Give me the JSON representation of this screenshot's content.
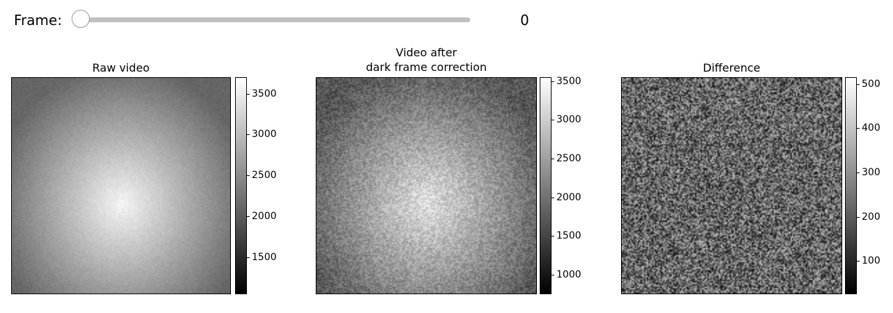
{
  "slider": {
    "label": "Frame:",
    "value": 0,
    "min": 0,
    "max": null
  },
  "panels": [
    {
      "title": "Raw video",
      "image": {
        "pattern": "smooth-vignette",
        "dark": 25,
        "bright": 245
      },
      "colorbar": {
        "min": 1050,
        "max": 3700,
        "ticks": [
          {
            "value": 1500,
            "label": "1500"
          },
          {
            "value": 2000,
            "label": "2000"
          },
          {
            "value": 2500,
            "label": "2500"
          },
          {
            "value": 3000,
            "label": "3000"
          },
          {
            "value": 3500,
            "label": "3500"
          }
        ]
      }
    },
    {
      "title": "Video after\ndark frame correction",
      "image": {
        "pattern": "noisy-vignette",
        "dark": 25,
        "bright": 235
      },
      "colorbar": {
        "min": 750,
        "max": 3550,
        "ticks": [
          {
            "value": 1000,
            "label": "1000"
          },
          {
            "value": 1500,
            "label": "1500"
          },
          {
            "value": 2000,
            "label": "2000"
          },
          {
            "value": 2500,
            "label": "2500"
          },
          {
            "value": 3000,
            "label": "3000"
          },
          {
            "value": 3500,
            "label": "3500"
          }
        ]
      }
    },
    {
      "title": "Difference",
      "image": {
        "pattern": "random-noise",
        "dark": 20,
        "bright": 240
      },
      "colorbar": {
        "min": 25,
        "max": 515,
        "ticks": [
          {
            "value": 100,
            "label": "100"
          },
          {
            "value": 200,
            "label": "200"
          },
          {
            "value": 300,
            "label": "300"
          },
          {
            "value": 400,
            "label": "400"
          },
          {
            "value": 500,
            "label": "500"
          }
        ]
      }
    }
  ]
}
